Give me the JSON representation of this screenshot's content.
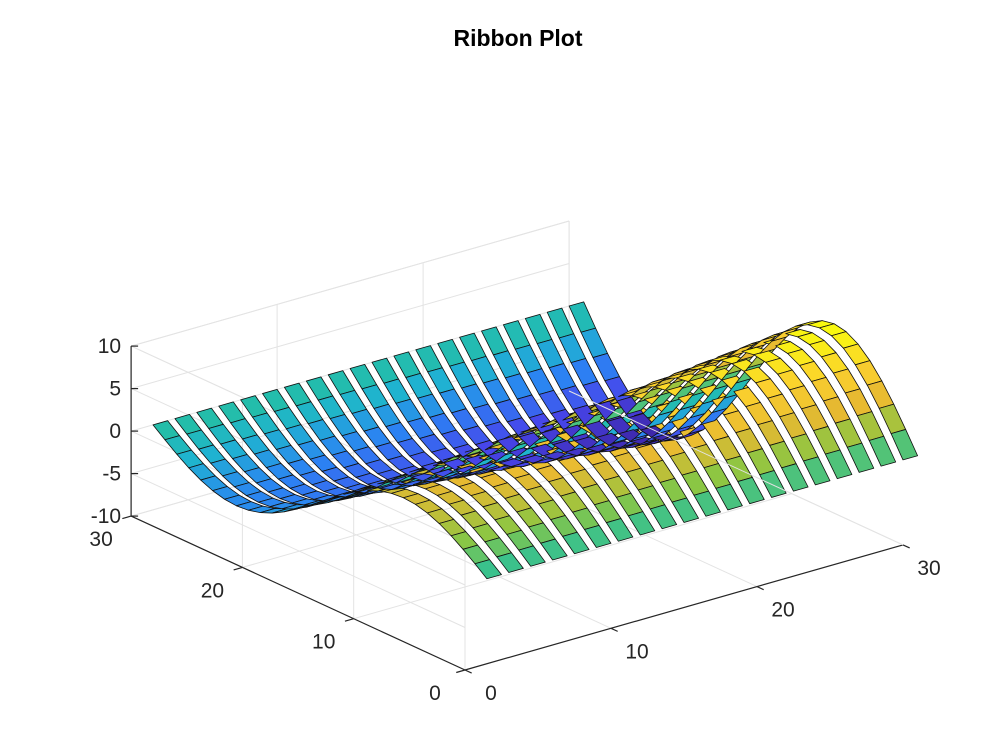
{
  "chart_data": {
    "type": "ribbon",
    "title": "Ribbon Plot",
    "xlabel": "",
    "ylabel": "",
    "zlabel": "",
    "xlim": [
      0,
      30
    ],
    "ylim": [
      0,
      30
    ],
    "zlim": [
      -10,
      10
    ],
    "x_ticks": [
      "0",
      "10",
      "20",
      "30"
    ],
    "y_ticks": [
      "0",
      "10",
      "20",
      "30"
    ],
    "z_ticks": [
      "-10",
      "-5",
      "0",
      "5",
      "10"
    ],
    "grid": true,
    "colormap": "parula",
    "colormap_stops": [
      "#3e26a8",
      "#4746eb",
      "#2c82f3",
      "#1fb3d0",
      "#25c09f",
      "#8dc642",
      "#e7b931",
      "#fbd12e",
      "#f9fb0e"
    ],
    "ribbon_count": 20,
    "ribbon_x_positions": [
      2,
      3.5,
      5,
      6.5,
      8,
      9.5,
      11,
      12.5,
      14,
      15.5,
      17,
      18.5,
      20,
      21.5,
      23,
      24.5,
      26,
      27.5,
      29,
      30.5
    ],
    "y_range": [
      0,
      30
    ],
    "segments_per_ribbon": 28,
    "surface_function": "z = A(x) * sin(2*pi*y/30), amplitude A(x) growing linearly from about 5 to about 11",
    "amplitude_range": [
      5,
      11
    ]
  }
}
